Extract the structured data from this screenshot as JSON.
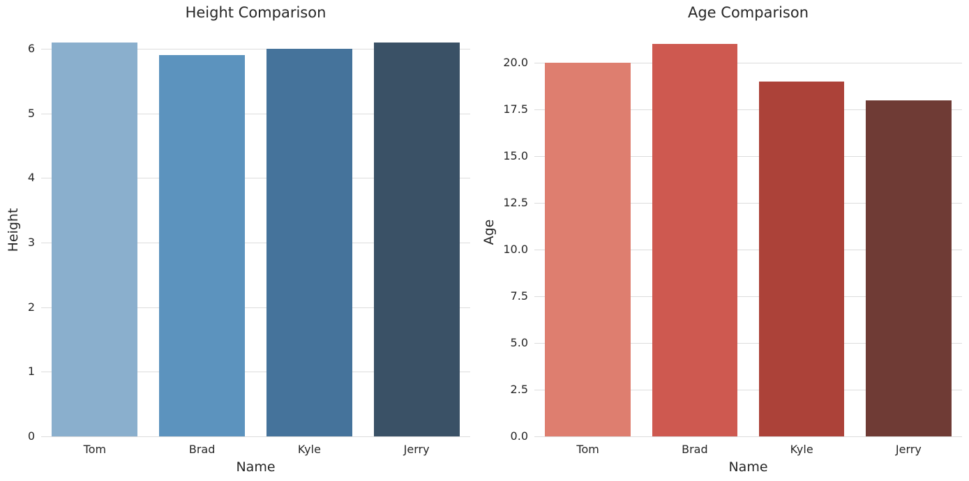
{
  "figure": {
    "background": "#ffffff",
    "text_color": "#262626",
    "grid_color": "#dcdcdc"
  },
  "chart_data": [
    {
      "type": "bar",
      "title": "Height Comparison",
      "xlabel": "Name",
      "ylabel": "Height",
      "categories": [
        "Tom",
        "Brad",
        "Kyle",
        "Jerry"
      ],
      "values": [
        6.1,
        5.9,
        6.0,
        6.1
      ],
      "bar_colors": [
        "#8aafcd",
        "#5c93be",
        "#45739b",
        "#3a5166"
      ],
      "yticks": [
        0,
        1,
        2,
        3,
        4,
        5,
        6
      ],
      "ytick_labels": [
        "0",
        "1",
        "2",
        "3",
        "4",
        "5",
        "6"
      ],
      "ylim": [
        0,
        6.25
      ],
      "grid": true,
      "legend": null
    },
    {
      "type": "bar",
      "title": "Age Comparison",
      "xlabel": "Name",
      "ylabel": "Age",
      "categories": [
        "Tom",
        "Brad",
        "Kyle",
        "Jerry"
      ],
      "values": [
        20,
        21,
        19,
        18
      ],
      "bar_colors": [
        "#de7e6f",
        "#ce5950",
        "#ac4239",
        "#6f3b35"
      ],
      "yticks": [
        0,
        2.5,
        5,
        7.5,
        10,
        12.5,
        15,
        17.5,
        20
      ],
      "ytick_labels": [
        "0.0",
        "2.5",
        "5.0",
        "7.5",
        "10.0",
        "12.5",
        "15.0",
        "17.5",
        "20.0"
      ],
      "ylim": [
        0,
        21.6
      ],
      "grid": true,
      "legend": null
    }
  ]
}
